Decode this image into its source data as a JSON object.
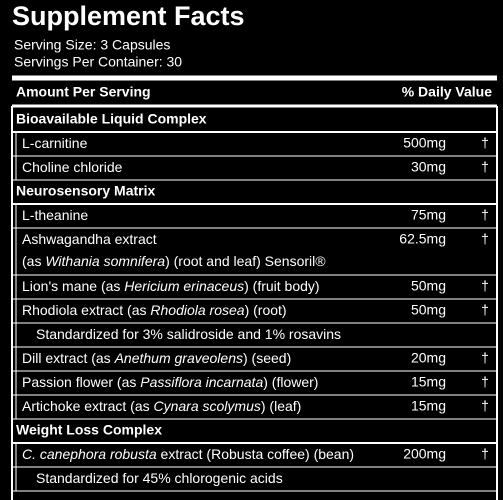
{
  "header": {
    "title": "Supplement Facts",
    "serving_size": "Serving Size: 3 Capsules",
    "servings_per_container": "Servings Per Container: 30"
  },
  "table": {
    "columns": [
      "Amount Per Serving",
      "% Daily Value"
    ],
    "sections": [
      {
        "title": "Bioavailable Liquid Complex",
        "rows": [
          {
            "lines": [
              [
                "L-carnitine"
              ]
            ],
            "amount": "500mg",
            "dv": "†"
          },
          {
            "lines": [
              [
                "Choline chloride"
              ]
            ],
            "amount": "30mg",
            "dv": "†"
          }
        ]
      },
      {
        "title": "Neurosensory  Matrix",
        "rows": [
          {
            "lines": [
              [
                "L-theanine"
              ]
            ],
            "amount": "75mg",
            "dv": "†"
          },
          {
            "lines": [
              [
                "Ashwagandha extract"
              ],
              [
                "(as ",
                {
                  "text": "Withania somnifera",
                  "italic": true
                },
                ") (root and leaf) Sensoril®"
              ]
            ],
            "amount": "62.5mg",
            "dv": "†"
          },
          {
            "lines": [
              [
                "Lion's mane (as ",
                {
                  "text": "Hericium erinaceus",
                  "italic": true
                },
                ") (fruit body)"
              ]
            ],
            "amount": "50mg",
            "dv": "†"
          },
          {
            "lines": [
              [
                "Rhodiola extract (as ",
                {
                  "text": "Rhodiola rosea",
                  "italic": true
                },
                ") (root)"
              ]
            ],
            "amount": "50mg",
            "dv": "†"
          },
          {
            "lines": [
              [
                "Standardized for 3% salidroside and 1% rosavins"
              ]
            ],
            "note": true
          },
          {
            "lines": [
              [
                "Dill extract (as ",
                {
                  "text": "Anethum graveolens",
                  "italic": true
                },
                ") (seed)"
              ]
            ],
            "amount": "20mg",
            "dv": "†"
          },
          {
            "lines": [
              [
                "Passion flower (as ",
                {
                  "text": "Passiflora incarnata",
                  "italic": true
                },
                ") (flower)"
              ]
            ],
            "amount": "15mg",
            "dv": "†"
          },
          {
            "lines": [
              [
                "Artichoke extract (as ",
                {
                  "text": "Cynara scolymus",
                  "italic": true
                },
                ") (leaf)"
              ]
            ],
            "amount": "15mg",
            "dv": "†"
          }
        ]
      },
      {
        "title": "Weight Loss Complex",
        "rows": [
          {
            "lines": [
              [
                {
                  "text": "C. canephora robusta",
                  "italic": true
                },
                " extract (Robusta coffee) (bean)"
              ]
            ],
            "amount": "200mg",
            "dv": "†"
          },
          {
            "lines": [
              [
                "Standardized for 45% chlorogenic acids"
              ]
            ],
            "note": true
          }
        ]
      }
    ]
  }
}
